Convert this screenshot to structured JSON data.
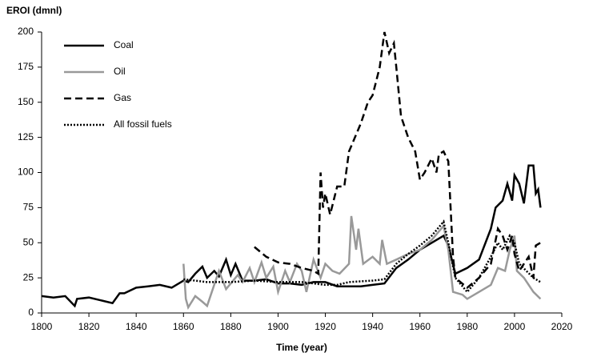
{
  "chart_data": {
    "type": "line",
    "y_label": "EROI (dmnl)",
    "x_label": "Time (year)",
    "xlim": [
      1800,
      2020
    ],
    "xticks": [
      1800,
      1820,
      1840,
      1860,
      1880,
      1900,
      1920,
      1940,
      1960,
      1980,
      2000,
      2020
    ],
    "ylim": [
      0,
      200
    ],
    "yticks": [
      0,
      25,
      50,
      75,
      100,
      125,
      150,
      175,
      200
    ],
    "grid": false,
    "legend": "top-left",
    "series": [
      {
        "name": "Coal",
        "color": "#000000",
        "dash": "solid",
        "x": [
          1800,
          1805,
          1810,
          1814,
          1815,
          1820,
          1825,
          1830,
          1833,
          1835,
          1840,
          1845,
          1850,
          1855,
          1860,
          1862,
          1865,
          1868,
          1870,
          1873,
          1875,
          1878,
          1880,
          1882,
          1885,
          1890,
          1895,
          1900,
          1905,
          1910,
          1915,
          1920,
          1925,
          1930,
          1935,
          1940,
          1945,
          1950,
          1955,
          1960,
          1965,
          1970,
          1972,
          1975,
          1980,
          1985,
          1990,
          1992,
          1995,
          1997,
          1999,
          2000,
          2002,
          2004,
          2006,
          2008,
          2009,
          2010,
          2011
        ],
        "values": [
          12,
          11,
          12,
          5,
          10,
          11,
          9,
          7,
          14,
          14,
          18,
          19,
          20,
          18,
          23,
          22,
          28,
          33,
          25,
          30,
          26,
          38,
          27,
          35,
          23,
          23,
          24,
          21,
          21,
          20,
          22,
          22,
          19,
          19,
          19,
          20,
          21,
          32,
          38,
          45,
          50,
          55,
          48,
          28,
          32,
          38,
          60,
          75,
          80,
          92,
          80,
          98,
          92,
          78,
          105,
          105,
          85,
          88,
          75
        ]
      },
      {
        "name": "Oil",
        "color": "#999999",
        "dash": "solid",
        "x": [
          1860,
          1861,
          1862,
          1865,
          1868,
          1870,
          1872,
          1875,
          1878,
          1880,
          1883,
          1885,
          1888,
          1890,
          1893,
          1895,
          1898,
          1900,
          1903,
          1905,
          1908,
          1910,
          1912,
          1915,
          1918,
          1920,
          1923,
          1926,
          1930,
          1931,
          1933,
          1934,
          1936,
          1940,
          1943,
          1944,
          1946,
          1950,
          1955,
          1960,
          1965,
          1970,
          1972,
          1974,
          1978,
          1980,
          1985,
          1990,
          1993,
          1996,
          1998,
          2000,
          2001,
          2004,
          2008,
          2011
        ],
        "values": [
          35,
          10,
          4,
          12,
          8,
          5,
          15,
          30,
          17,
          21,
          27,
          22,
          32,
          22,
          36,
          25,
          33,
          15,
          30,
          22,
          35,
          30,
          15,
          38,
          25,
          35,
          30,
          28,
          35,
          69,
          45,
          60,
          35,
          40,
          35,
          52,
          35,
          38,
          42,
          45,
          52,
          62,
          45,
          15,
          13,
          10,
          15,
          20,
          32,
          30,
          45,
          55,
          30,
          25,
          15,
          10
        ]
      },
      {
        "name": "Gas",
        "color": "#000000",
        "dash": "dashed",
        "x": [
          1890,
          1895,
          1900,
          1905,
          1910,
          1915,
          1917,
          1918,
          1919,
          1920,
          1922,
          1925,
          1928,
          1930,
          1935,
          1938,
          1940,
          1943,
          1945,
          1947,
          1949,
          1950,
          1952,
          1955,
          1958,
          1960,
          1962,
          1965,
          1967,
          1968,
          1970,
          1972,
          1974,
          1975,
          1980,
          1985,
          1990,
          1993,
          1995,
          1997,
          1999,
          2000,
          2002,
          2004,
          2006,
          2008,
          2009,
          2011
        ],
        "values": [
          47,
          40,
          36,
          35,
          32,
          30,
          28,
          100,
          75,
          85,
          70,
          90,
          90,
          115,
          135,
          150,
          155,
          175,
          200,
          185,
          192,
          175,
          140,
          125,
          115,
          95,
          100,
          110,
          100,
          113,
          115,
          108,
          40,
          25,
          18,
          25,
          35,
          60,
          55,
          45,
          55,
          42,
          30,
          35,
          40,
          25,
          48,
          50
        ]
      },
      {
        "name": "All fossil fuels",
        "color": "#000000",
        "dash": "dotted",
        "x": [
          1860,
          1870,
          1880,
          1890,
          1900,
          1910,
          1920,
          1925,
          1930,
          1940,
          1945,
          1950,
          1955,
          1960,
          1965,
          1970,
          1972,
          1975,
          1980,
          1985,
          1990,
          1993,
          1995,
          1998,
          2000,
          2002,
          2005,
          2008,
          2011
        ],
        "values": [
          24,
          22,
          22,
          23,
          22,
          22,
          20,
          20,
          22,
          23,
          24,
          35,
          42,
          48,
          55,
          65,
          50,
          25,
          15,
          25,
          40,
          50,
          45,
          55,
          50,
          35,
          30,
          25,
          22
        ]
      }
    ]
  }
}
